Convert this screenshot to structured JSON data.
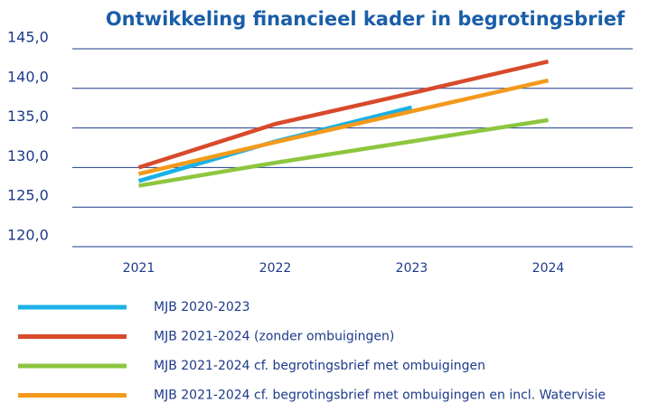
{
  "chart_data": {
    "type": "line",
    "title": "Ontwikkeling financieel kader in begrotingsbrief",
    "categories": [
      "2021",
      "2022",
      "2023",
      "2024"
    ],
    "series": [
      {
        "name": "MJB 2020-2023",
        "color": "#1bb0e6",
        "values": [
          128.3,
          133.3,
          137.6,
          null
        ]
      },
      {
        "name": "MJB 2021-2024 (zonder ombuigingen)",
        "color": "#d84a2b",
        "values": [
          130.0,
          135.5,
          139.4,
          143.4
        ]
      },
      {
        "name": "MJB 2021-2024 cf. begrotingsbrief met ombuigingen",
        "color": "#8dc63f",
        "values": [
          127.7,
          130.6,
          133.3,
          136.0
        ]
      },
      {
        "name": "MJB 2021-2024 cf. begrotingsbrief met ombuigingen en incl. Watervisie",
        "color": "#f39a1c",
        "values": [
          129.2,
          133.2,
          137.1,
          141.0
        ]
      }
    ],
    "ylim": [
      120,
      145
    ],
    "yticks": [
      {
        "value": 120,
        "label": "120,0"
      },
      {
        "value": 125,
        "label": "125,0"
      },
      {
        "value": 130,
        "label": "130,0"
      },
      {
        "value": 135,
        "label": "135,0"
      },
      {
        "value": 140,
        "label": "140,0"
      },
      {
        "value": 145,
        "label": "145,0"
      }
    ],
    "grid": true
  }
}
